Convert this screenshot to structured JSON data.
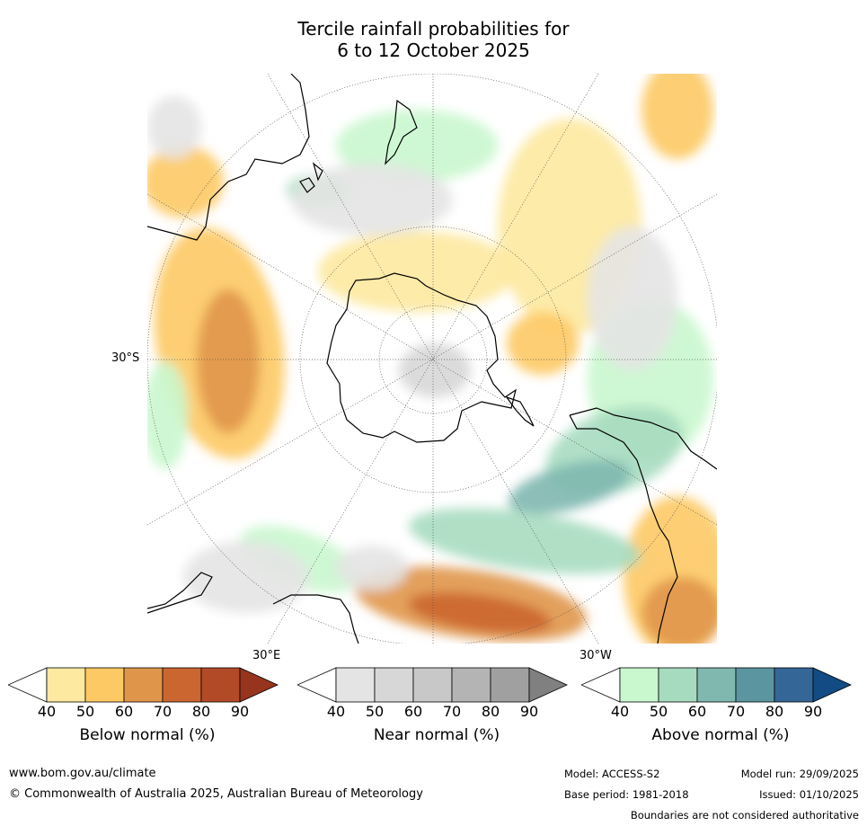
{
  "title_line1": "Tercile rainfall probabilities for",
  "title_line2": "6 to 12 October 2025",
  "map": {
    "projection": "south polar stereographic",
    "lat_label": "30°S",
    "lon_label_east": "30°E",
    "lon_label_west": "30°W",
    "colors": {
      "below": [
        "#fde9a0",
        "#fdc964",
        "#e0964a",
        "#cb6630",
        "#b24a28",
        "#97341e"
      ],
      "near": [
        "#e4e4e4",
        "#d7d7d7",
        "#c8c8c8",
        "#b4b4b4",
        "#a0a0a0",
        "#808080"
      ],
      "above": [
        "#c9f7ce",
        "#a7dbc0",
        "#80b8b0",
        "#5b95a0",
        "#356698",
        "#134c84"
      ],
      "coastline": "#000000"
    }
  },
  "legends": [
    {
      "caption": "Below normal (%)",
      "ticks": [
        "40",
        "50",
        "60",
        "70",
        "80",
        "90"
      ],
      "colors": [
        "#fde9a0",
        "#fdc964",
        "#e0964a",
        "#cb6630",
        "#b24a28",
        "#97341e"
      ]
    },
    {
      "caption": "Near normal (%)",
      "ticks": [
        "40",
        "50",
        "60",
        "70",
        "80",
        "90"
      ],
      "colors": [
        "#e4e4e4",
        "#d7d7d7",
        "#c8c8c8",
        "#b4b4b4",
        "#a0a0a0",
        "#808080"
      ]
    },
    {
      "caption": "Above normal (%)",
      "ticks": [
        "40",
        "50",
        "60",
        "70",
        "80",
        "90"
      ],
      "colors": [
        "#c9f7ce",
        "#a7dbc0",
        "#80b8b0",
        "#5b95a0",
        "#356698",
        "#134c84"
      ]
    }
  ],
  "footer": {
    "website": "www.bom.gov.au/climate",
    "copyright": "© Commonwealth of Australia 2025, Australian Bureau of Meteorology",
    "model": "Model: ACCESS-S2",
    "base_period": "Base period: 1981-2018",
    "model_run": "Model run: 29/09/2025",
    "issued": "Issued: 01/10/2025",
    "disclaimer": "Boundaries are not considered authoritative"
  }
}
